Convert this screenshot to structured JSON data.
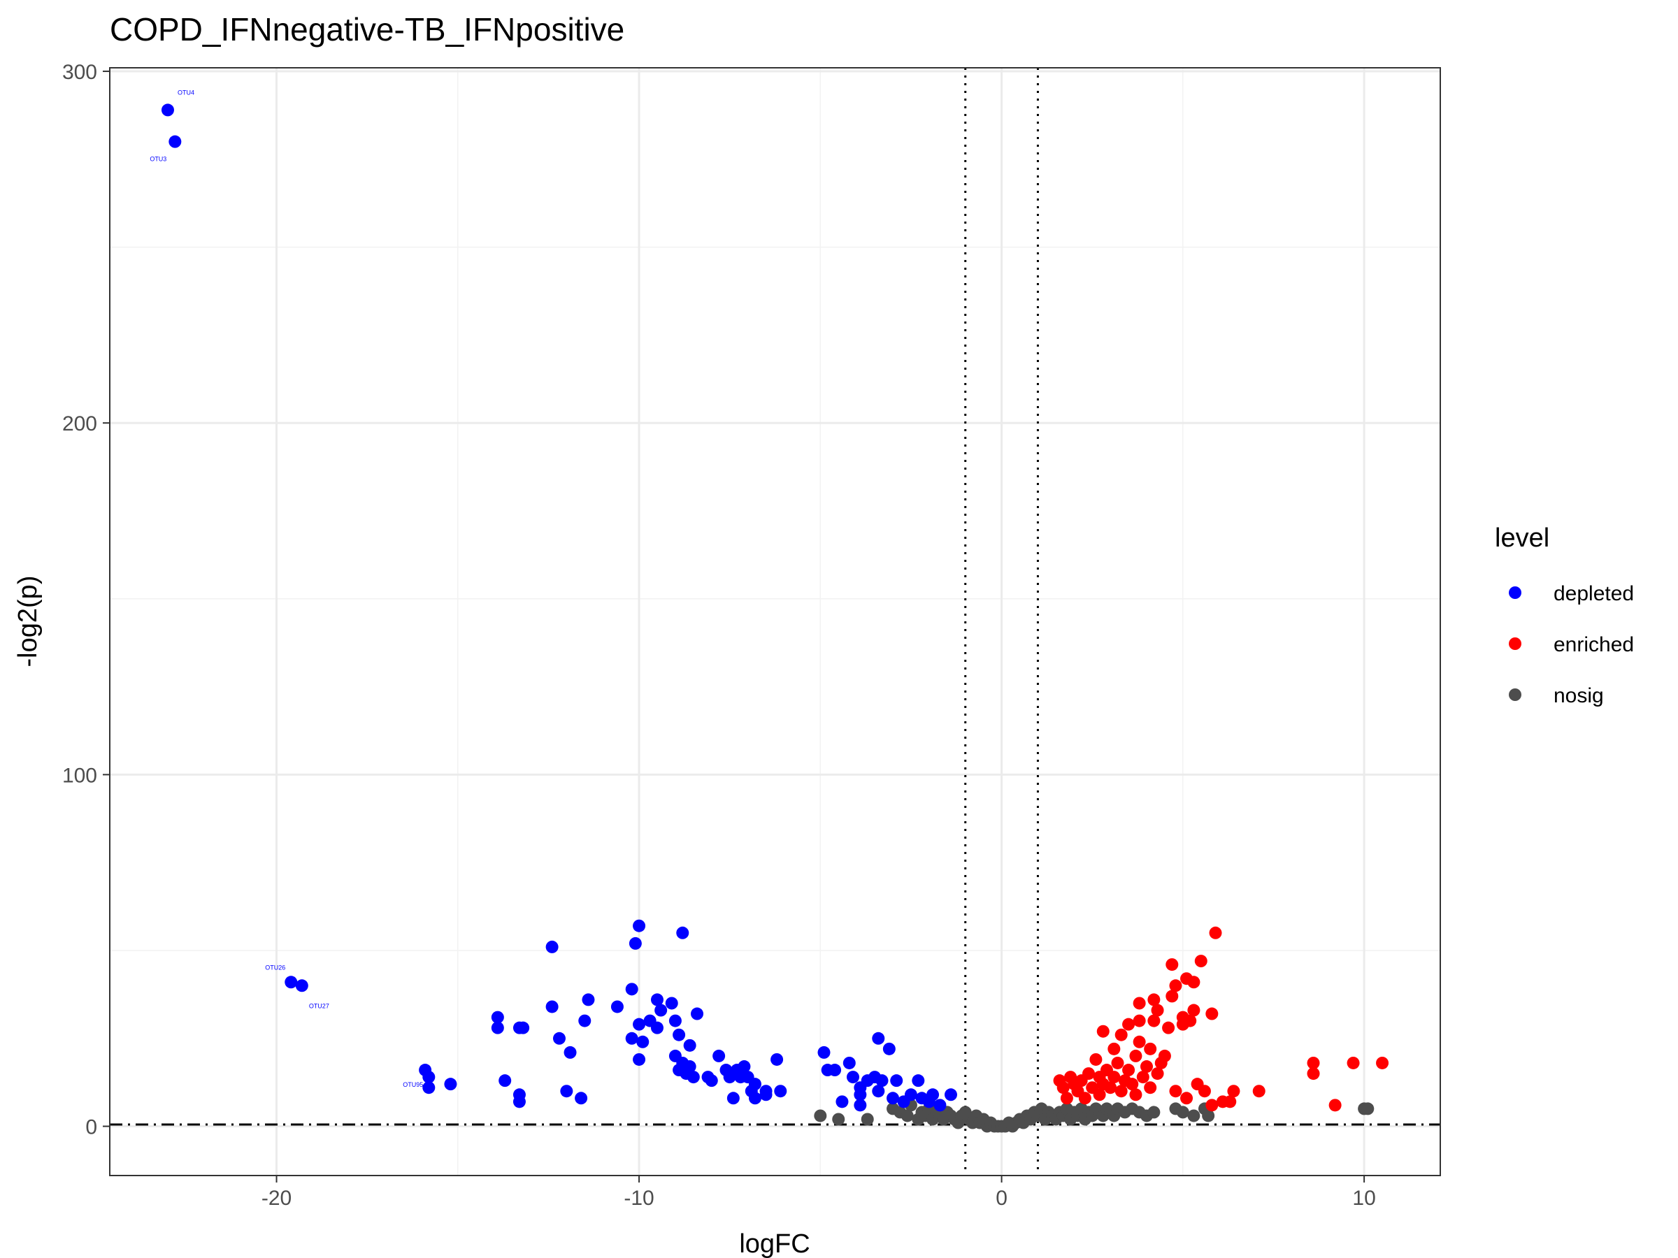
{
  "chart_data": {
    "type": "scatter",
    "title": "COPD_IFNnegative-TB_IFNpositive",
    "xlabel": "logFC",
    "ylabel": "-log2(p)",
    "xlim": [
      -24.6,
      12.1
    ],
    "ylim": [
      -14,
      301
    ],
    "x_ticks": [
      -20,
      -10,
      0,
      10
    ],
    "x_tick_labels": [
      "-20",
      "-10",
      "0",
      "10"
    ],
    "y_ticks": [
      0,
      100,
      200,
      300
    ],
    "y_tick_labels": [
      "0",
      "100",
      "200",
      "300"
    ],
    "grid": true,
    "reference_lines": {
      "vertical_dotted": [
        -1,
        1
      ],
      "horizontal_dotdash": 0.5
    },
    "legend": {
      "title": "level",
      "placement": "right",
      "entries": [
        {
          "label": "depleted",
          "color": "#0000ff"
        },
        {
          "label": "enriched",
          "color": "#ff0000"
        },
        {
          "label": "nosig",
          "color": "#4d4d4d"
        }
      ]
    },
    "series": [
      {
        "name": "depleted",
        "color": "#0000ff",
        "points": [
          [
            -23.0,
            289
          ],
          [
            -22.8,
            280
          ],
          [
            -19.6,
            41
          ],
          [
            -19.3,
            40
          ],
          [
            -15.9,
            16
          ],
          [
            -15.8,
            14
          ],
          [
            -15.8,
            11
          ],
          [
            -15.2,
            12
          ],
          [
            -13.9,
            31
          ],
          [
            -13.9,
            28
          ],
          [
            -13.7,
            13
          ],
          [
            -13.3,
            28
          ],
          [
            -13.2,
            28
          ],
          [
            -13.3,
            9
          ],
          [
            -13.3,
            7
          ],
          [
            -12.4,
            51
          ],
          [
            -12.4,
            34
          ],
          [
            -12.2,
            25
          ],
          [
            -12.0,
            10
          ],
          [
            -11.9,
            21
          ],
          [
            -11.6,
            8
          ],
          [
            -11.5,
            30
          ],
          [
            -11.4,
            36
          ],
          [
            -10.6,
            34
          ],
          [
            -10.2,
            39
          ],
          [
            -10.2,
            25
          ],
          [
            -10.1,
            52
          ],
          [
            -10.0,
            57
          ],
          [
            -10.0,
            29
          ],
          [
            -9.9,
            24
          ],
          [
            -10.0,
            19
          ],
          [
            -9.7,
            30
          ],
          [
            -9.5,
            36
          ],
          [
            -9.5,
            28
          ],
          [
            -9.4,
            33
          ],
          [
            -9.1,
            35
          ],
          [
            -9.0,
            30
          ],
          [
            -8.9,
            26
          ],
          [
            -9.0,
            20
          ],
          [
            -8.8,
            55
          ],
          [
            -8.9,
            16
          ],
          [
            -8.8,
            18
          ],
          [
            -8.7,
            15
          ],
          [
            -8.6,
            23
          ],
          [
            -8.6,
            17
          ],
          [
            -8.5,
            14
          ],
          [
            -8.4,
            32
          ],
          [
            -8.1,
            14
          ],
          [
            -8.0,
            13
          ],
          [
            -7.8,
            20
          ],
          [
            -7.6,
            16
          ],
          [
            -7.5,
            14
          ],
          [
            -7.4,
            8
          ],
          [
            -7.3,
            16
          ],
          [
            -7.2,
            14
          ],
          [
            -7.1,
            17
          ],
          [
            -7.0,
            14
          ],
          [
            -6.9,
            10
          ],
          [
            -6.8,
            8
          ],
          [
            -6.8,
            12
          ],
          [
            -6.5,
            9
          ],
          [
            -6.5,
            10
          ],
          [
            -6.2,
            19
          ],
          [
            -6.1,
            10
          ],
          [
            -4.9,
            21
          ],
          [
            -4.8,
            16
          ],
          [
            -4.6,
            16
          ],
          [
            -4.4,
            7
          ],
          [
            -4.2,
            18
          ],
          [
            -4.1,
            14
          ],
          [
            -3.9,
            11
          ],
          [
            -3.9,
            9
          ],
          [
            -3.9,
            6
          ],
          [
            -3.7,
            13
          ],
          [
            -3.5,
            14
          ],
          [
            -3.4,
            25
          ],
          [
            -3.4,
            10
          ],
          [
            -3.3,
            13
          ],
          [
            -3.1,
            22
          ],
          [
            -3.0,
            8
          ],
          [
            -2.9,
            13
          ],
          [
            -2.7,
            7
          ],
          [
            -2.5,
            9
          ],
          [
            -2.3,
            13
          ],
          [
            -2.2,
            8
          ],
          [
            -2.0,
            7
          ],
          [
            -1.9,
            9
          ],
          [
            -1.7,
            6
          ],
          [
            -1.4,
            9
          ]
        ],
        "point_labels": [
          {
            "text": "OTU4",
            "x": -23.0,
            "y": 289
          },
          {
            "text": "OTU3",
            "x": -22.8,
            "y": 280
          },
          {
            "text": "OTU26",
            "x": -19.6,
            "y": 41
          },
          {
            "text": "OTU27",
            "x": -19.3,
            "y": 40
          },
          {
            "text": "OTU95",
            "x": -15.8,
            "y": 11
          }
        ]
      },
      {
        "name": "enriched",
        "color": "#ff0000",
        "points": [
          [
            1.6,
            13
          ],
          [
            1.7,
            11
          ],
          [
            1.8,
            8
          ],
          [
            1.9,
            14
          ],
          [
            2.0,
            12
          ],
          [
            2.1,
            10
          ],
          [
            2.2,
            13
          ],
          [
            2.3,
            8
          ],
          [
            2.4,
            15
          ],
          [
            2.5,
            11
          ],
          [
            2.6,
            19
          ],
          [
            2.7,
            14
          ],
          [
            2.7,
            9
          ],
          [
            2.8,
            12
          ],
          [
            2.8,
            27
          ],
          [
            2.9,
            16
          ],
          [
            3.0,
            11
          ],
          [
            3.1,
            22
          ],
          [
            3.1,
            14
          ],
          [
            3.2,
            18
          ],
          [
            3.3,
            10
          ],
          [
            3.3,
            26
          ],
          [
            3.4,
            13
          ],
          [
            3.5,
            16
          ],
          [
            3.5,
            29
          ],
          [
            3.6,
            12
          ],
          [
            3.7,
            20
          ],
          [
            3.7,
            9
          ],
          [
            3.8,
            30
          ],
          [
            3.8,
            24
          ],
          [
            3.8,
            35
          ],
          [
            3.9,
            14
          ],
          [
            4.0,
            17
          ],
          [
            4.1,
            22
          ],
          [
            4.1,
            11
          ],
          [
            4.2,
            30
          ],
          [
            4.2,
            36
          ],
          [
            4.3,
            33
          ],
          [
            4.3,
            15
          ],
          [
            4.4,
            18
          ],
          [
            4.5,
            20
          ],
          [
            4.6,
            28
          ],
          [
            4.7,
            37
          ],
          [
            4.7,
            46
          ],
          [
            4.8,
            40
          ],
          [
            4.8,
            10
          ],
          [
            5.0,
            31
          ],
          [
            5.0,
            29
          ],
          [
            5.1,
            42
          ],
          [
            5.1,
            8
          ],
          [
            5.2,
            30
          ],
          [
            5.3,
            33
          ],
          [
            5.3,
            41
          ],
          [
            5.4,
            12
          ],
          [
            5.5,
            47
          ],
          [
            5.6,
            10
          ],
          [
            5.8,
            32
          ],
          [
            5.8,
            6
          ],
          [
            5.9,
            55
          ],
          [
            6.1,
            7
          ],
          [
            6.3,
            7
          ],
          [
            6.4,
            10
          ],
          [
            7.1,
            10
          ],
          [
            8.6,
            18
          ],
          [
            8.6,
            15
          ],
          [
            9.2,
            6
          ],
          [
            9.7,
            18
          ],
          [
            10.5,
            18
          ]
        ]
      },
      {
        "name": "nosig",
        "color": "#4d4d4d",
        "points": [
          [
            -5.0,
            3
          ],
          [
            -4.5,
            2
          ],
          [
            -3.7,
            2
          ],
          [
            -3.0,
            5
          ],
          [
            -2.8,
            4
          ],
          [
            -2.6,
            3
          ],
          [
            -2.5,
            6
          ],
          [
            -2.3,
            2
          ],
          [
            -2.2,
            4
          ],
          [
            -2.1,
            3
          ],
          [
            -2.0,
            5
          ],
          [
            -1.9,
            2
          ],
          [
            -1.8,
            4
          ],
          [
            -1.7,
            3
          ],
          [
            -1.6,
            2
          ],
          [
            -1.5,
            4
          ],
          [
            -1.4,
            3
          ],
          [
            -1.3,
            2
          ],
          [
            -1.2,
            1
          ],
          [
            -1.1,
            3
          ],
          [
            -1.0,
            4
          ],
          [
            -0.9,
            2
          ],
          [
            -0.8,
            1
          ],
          [
            -0.7,
            3
          ],
          [
            -0.6,
            1
          ],
          [
            -0.5,
            2
          ],
          [
            -0.4,
            0
          ],
          [
            -0.3,
            1
          ],
          [
            -0.2,
            0
          ],
          [
            -0.1,
            0
          ],
          [
            0.0,
            0
          ],
          [
            0.1,
            0
          ],
          [
            0.2,
            1
          ],
          [
            0.3,
            0
          ],
          [
            0.4,
            1
          ],
          [
            0.5,
            2
          ],
          [
            0.6,
            1
          ],
          [
            0.7,
            3
          ],
          [
            0.8,
            2
          ],
          [
            0.9,
            4
          ],
          [
            1.0,
            3
          ],
          [
            1.1,
            5
          ],
          [
            1.2,
            2
          ],
          [
            1.3,
            4
          ],
          [
            1.4,
            3
          ],
          [
            1.5,
            2
          ],
          [
            1.6,
            4
          ],
          [
            1.7,
            3
          ],
          [
            1.8,
            5
          ],
          [
            1.9,
            2
          ],
          [
            2.0,
            4
          ],
          [
            2.1,
            3
          ],
          [
            2.2,
            5
          ],
          [
            2.3,
            2
          ],
          [
            2.4,
            4
          ],
          [
            2.5,
            3
          ],
          [
            2.6,
            5
          ],
          [
            2.7,
            4
          ],
          [
            2.8,
            3
          ],
          [
            2.9,
            5
          ],
          [
            3.0,
            4
          ],
          [
            3.1,
            3
          ],
          [
            3.2,
            5
          ],
          [
            3.4,
            4
          ],
          [
            3.6,
            5
          ],
          [
            3.8,
            4
          ],
          [
            4.0,
            3
          ],
          [
            4.2,
            4
          ],
          [
            4.8,
            5
          ],
          [
            5.0,
            4
          ],
          [
            5.3,
            3
          ],
          [
            5.6,
            5
          ],
          [
            5.7,
            3
          ],
          [
            10.0,
            5
          ],
          [
            10.1,
            5
          ]
        ]
      }
    ]
  }
}
